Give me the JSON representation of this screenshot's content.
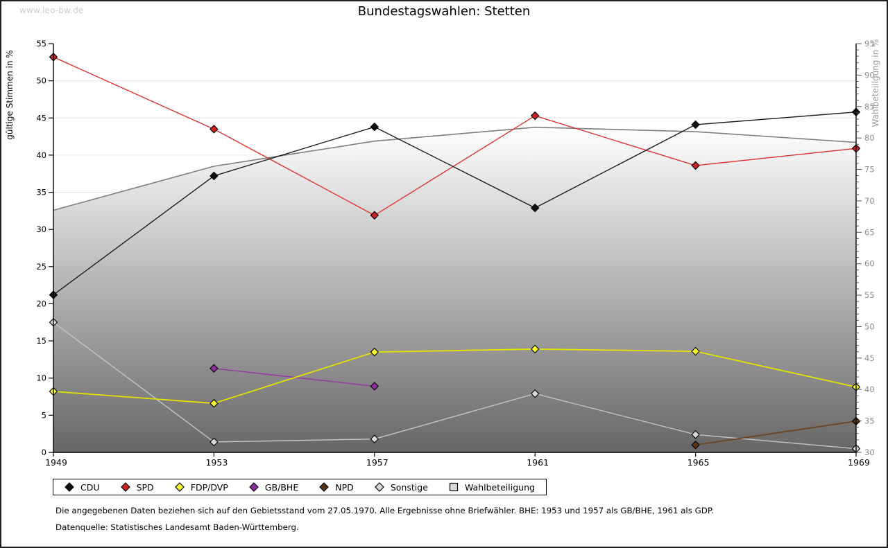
{
  "watermark": "www.leo-bw.de",
  "title": "Bundestagswahlen: Stetten",
  "footnotes": {
    "line1": "Die angegebenen Daten beziehen sich auf den Gebietsstand vom 27.05.1970. Alle Ergebnisse ohne Briefwähler. BHE: 1953 und 1957 als GB/BHE, 1961 als GDP.",
    "line2": "Datenquelle: Statistisches Landesamt Baden-Württemberg."
  },
  "chart_data": {
    "type": "line",
    "x": [
      1949,
      1953,
      1957,
      1961,
      1965,
      1969
    ],
    "left_axis": {
      "label": "gültige Stimmen in %",
      "min": 0,
      "max": 55,
      "step": 5
    },
    "right_axis": {
      "label": "Wahlbeteiligung in %",
      "min": 30,
      "max": 95,
      "step": 5,
      "minor_step": 1
    },
    "grid": "horizontal",
    "legend_position": "bottom",
    "area_gradient": {
      "top": "#ffffff",
      "bottom": "#666666"
    },
    "series": [
      {
        "name": "Wahlbeteiligung",
        "axis": "right",
        "style": "area",
        "line": "#7d7d7d",
        "marker_fill": "#d9d9d9",
        "marker": "square",
        "values": [
          68.5,
          75.5,
          79.5,
          81.7,
          81.0,
          79.3
        ]
      },
      {
        "name": "Sonstige",
        "axis": "left",
        "style": "line",
        "line": "#c4c4c4",
        "marker_fill": "#d9d9d9",
        "marker": "diamond",
        "values": [
          17.5,
          1.4,
          1.8,
          7.9,
          2.4,
          0.5
        ]
      },
      {
        "name": "GB/BHE",
        "axis": "left",
        "style": "line",
        "line": "#9a35a8",
        "marker_fill": "#8d2f9e",
        "marker": "diamond",
        "values": [
          null,
          11.3,
          8.9,
          null,
          null,
          null
        ]
      },
      {
        "name": "NPD",
        "axis": "left",
        "style": "line",
        "line": "#6b4423",
        "marker_fill": "#5c3317",
        "marker": "diamond",
        "values": [
          null,
          null,
          null,
          null,
          1.0,
          4.2
        ]
      },
      {
        "name": "FDP/DVP",
        "axis": "left",
        "style": "line",
        "line": "#e3e300",
        "marker_fill": "#ffff2e",
        "marker": "diamond",
        "values": [
          8.2,
          6.6,
          13.5,
          13.9,
          13.6,
          8.8
        ]
      },
      {
        "name": "SPD",
        "axis": "left",
        "style": "line",
        "line": "#e03232",
        "marker_fill": "#cc2222",
        "marker": "diamond",
        "values": [
          53.2,
          43.5,
          31.9,
          45.3,
          38.6,
          40.9
        ]
      },
      {
        "name": "CDU",
        "axis": "left",
        "style": "line",
        "line": "#1c1c1c",
        "marker_fill": "#111111",
        "marker": "diamond",
        "values": [
          21.2,
          37.2,
          43.8,
          32.9,
          44.1,
          45.8
        ]
      }
    ],
    "legend_order": [
      "CDU",
      "SPD",
      "FDP/DVP",
      "GB/BHE",
      "NPD",
      "Sonstige",
      "Wahlbeteiligung"
    ]
  }
}
